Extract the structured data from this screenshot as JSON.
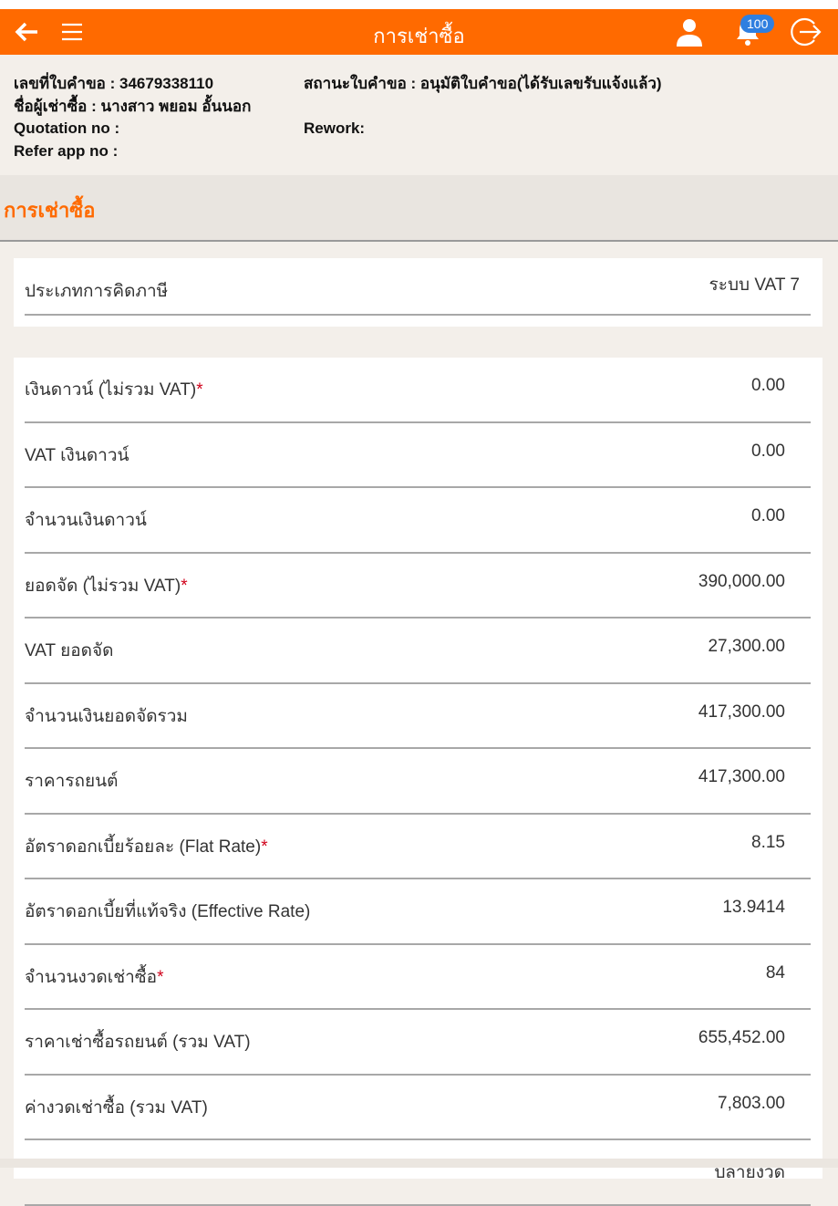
{
  "header": {
    "title": "การเช่าซื้อ",
    "notification_count": "100",
    "icons": [
      "back-arrow-icon",
      "menu-icon",
      "user-icon",
      "bell-icon",
      "logout-icon"
    ]
  },
  "info": {
    "application_no": "เลขที่ใบคำขอ : 34679338110",
    "renter_name": "ชื่อผู้เช่าซื้อ : นางสาว พยอม อั้นนอก",
    "quotation_no": "Quotation no :",
    "refer_app_no": "Refer app no :",
    "status": "สถานะใบคำขอ : อนุมัติใบคำขอ(ได้รับเลขรับแจ้งแล้ว)",
    "rework": "Rework:"
  },
  "section": {
    "title": "การเช่าซื้อ"
  },
  "tax": {
    "label": "ประเภทการคิดภาษี",
    "value": "ระบบ VAT 7"
  },
  "rows": [
    {
      "label": "เงินดาวน์ (ไม่รวม VAT)",
      "required": "*",
      "value": "0.00"
    },
    {
      "label": "VAT เงินดาวน์",
      "required": "",
      "value": "0.00"
    },
    {
      "label": "จำนวนเงินดาวน์",
      "required": "",
      "value": "0.00"
    },
    {
      "label": "ยอดจัด (ไม่รวม VAT)",
      "required": "*",
      "value": "390,000.00"
    },
    {
      "label": "VAT ยอดจัด",
      "required": "",
      "value": "27,300.00"
    },
    {
      "label": "จำนวนเงินยอดจัดรวม",
      "required": "",
      "value": "417,300.00"
    },
    {
      "label": "ราคารถยนต์",
      "required": "",
      "value": "417,300.00"
    },
    {
      "label": "อัตราดอกเบี้ยร้อยละ (Flat Rate)",
      "required": "*",
      "value": "8.15"
    },
    {
      "label": "อัตราดอกเบี้ยที่แท้จริง (Effective Rate)",
      "required": "",
      "value": "13.9414"
    },
    {
      "label": "จำนวนงวดเช่าซื้อ",
      "required": "*",
      "value": "84"
    },
    {
      "label": "ราคาเช่าซื้อรถยนต์ (รวม VAT)",
      "required": "",
      "value": "655,452.00"
    },
    {
      "label": "ค่างวดเช่าซื้อ (รวม VAT)",
      "required": "",
      "value": "7,803.00"
    },
    {
      "label": "",
      "required": "",
      "value": "ปลายงวด"
    }
  ],
  "colors": {
    "brand": "#ff6a00",
    "required": "#d0021b",
    "badge": "#2f7fe0"
  }
}
